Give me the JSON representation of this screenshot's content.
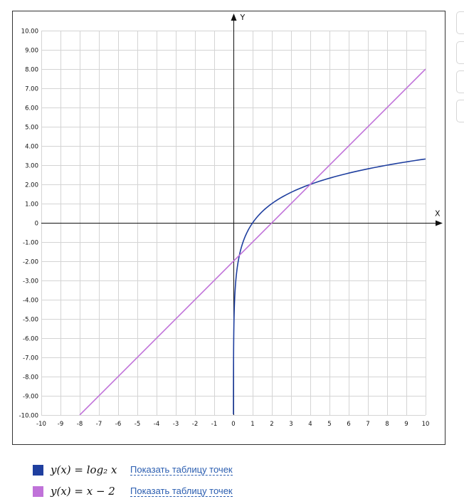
{
  "chart_data": {
    "type": "line",
    "xlabel": "X",
    "ylabel": "Y",
    "xlim": [
      -10,
      10
    ],
    "ylim": [
      -10,
      10
    ],
    "grid": true,
    "x_ticks": [
      "-10",
      "-9",
      "-8",
      "-7",
      "-6",
      "-5",
      "-4",
      "-3",
      "-2",
      "-1",
      "0",
      "1",
      "2",
      "3",
      "4",
      "5",
      "6",
      "7",
      "8",
      "9",
      "10"
    ],
    "y_ticks": [
      "10.00",
      "9.00",
      "8.00",
      "7.00",
      "6.00",
      "5.00",
      "4.00",
      "3.00",
      "2.00",
      "1.00",
      "0",
      "-1.00",
      "-2.00",
      "-3.00",
      "-4.00",
      "-5.00",
      "-6.00",
      "-7.00",
      "-8.00",
      "-9.00",
      "-10.00"
    ],
    "series": [
      {
        "name": "y(x) = log₂ x",
        "color": "#1f3f9f",
        "x": [
          0.001,
          0.005,
          0.01,
          0.02,
          0.05,
          0.1,
          0.2,
          0.3,
          0.5,
          0.75,
          1,
          1.5,
          2,
          3,
          4,
          5,
          6,
          7,
          8,
          9,
          10
        ],
        "y": [
          -9.97,
          -7.64,
          -6.64,
          -5.64,
          -4.32,
          -3.32,
          -2.32,
          -1.74,
          -1.0,
          -0.42,
          0,
          0.58,
          1.0,
          1.58,
          2.0,
          2.32,
          2.58,
          2.81,
          3.0,
          3.17,
          3.32
        ]
      },
      {
        "name": "y(x) = x − 2",
        "color": "#c072d9",
        "x": [
          -8,
          10
        ],
        "y": [
          -10,
          8
        ]
      }
    ]
  },
  "legend": [
    {
      "formula": "y(x) = log₂ x",
      "link": "Показать таблицу точек",
      "color": "#1f3f9f"
    },
    {
      "formula": "y(x) = x − 2",
      "link": "Показать таблицу точек",
      "color": "#c072d9"
    }
  ]
}
